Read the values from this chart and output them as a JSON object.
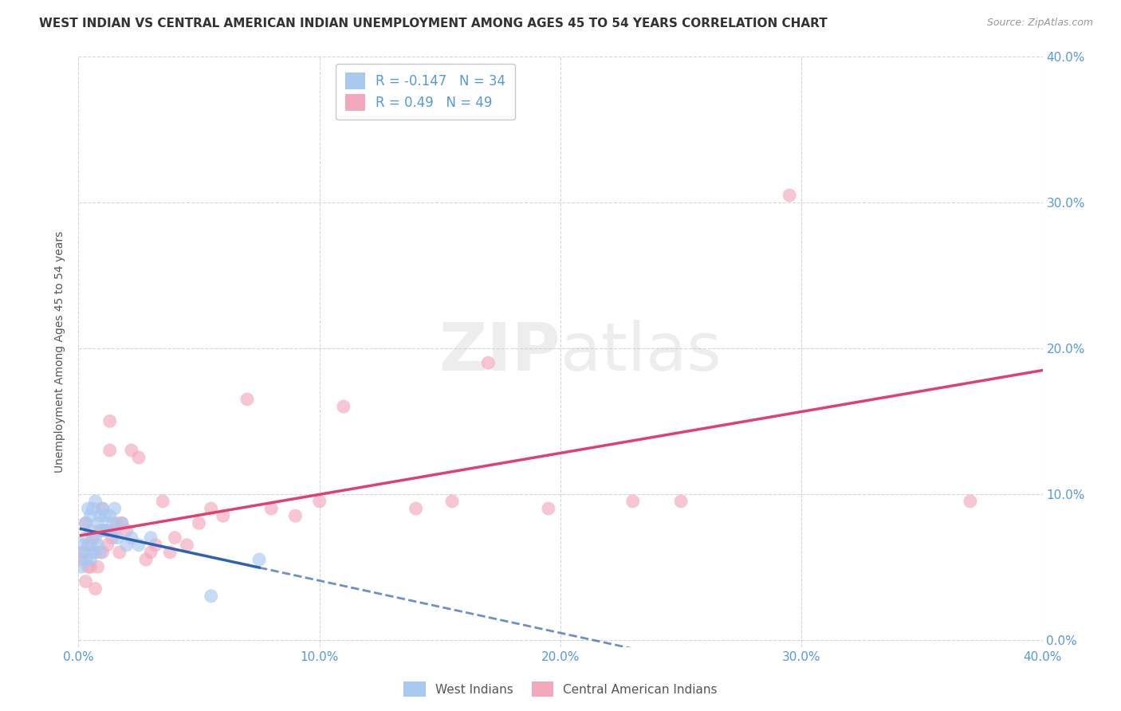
{
  "title": "WEST INDIAN VS CENTRAL AMERICAN INDIAN UNEMPLOYMENT AMONG AGES 45 TO 54 YEARS CORRELATION CHART",
  "source": "Source: ZipAtlas.com",
  "ylabel": "Unemployment Among Ages 45 to 54 years",
  "legend_label1": "West Indians",
  "legend_label2": "Central American Indians",
  "r1": -0.147,
  "n1": 34,
  "r2": 0.49,
  "n2": 49,
  "blue_color": "#A8C8F0",
  "pink_color": "#F4A8BC",
  "blue_line_color": "#3060B0",
  "pink_line_color": "#E04070",
  "axis_color": "#5599DD",
  "grid_color": "#CCCCCC",
  "background_color": "#FFFFFF",
  "title_color": "#333333",
  "west_indians_x": [
    0.001,
    0.002,
    0.002,
    0.003,
    0.003,
    0.003,
    0.004,
    0.004,
    0.005,
    0.005,
    0.005,
    0.006,
    0.006,
    0.007,
    0.007,
    0.008,
    0.008,
    0.009,
    0.009,
    0.01,
    0.01,
    0.011,
    0.012,
    0.013,
    0.014,
    0.015,
    0.016,
    0.018,
    0.02,
    0.022,
    0.025,
    0.03,
    0.055,
    0.075
  ],
  "west_indians_y": [
    0.05,
    0.06,
    0.065,
    0.055,
    0.07,
    0.08,
    0.065,
    0.09,
    0.055,
    0.075,
    0.085,
    0.06,
    0.09,
    0.07,
    0.095,
    0.08,
    0.065,
    0.085,
    0.06,
    0.075,
    0.09,
    0.085,
    0.075,
    0.085,
    0.08,
    0.09,
    0.07,
    0.08,
    0.065,
    0.07,
    0.065,
    0.07,
    0.03,
    0.055
  ],
  "central_american_x": [
    0.001,
    0.002,
    0.003,
    0.003,
    0.004,
    0.005,
    0.005,
    0.006,
    0.007,
    0.007,
    0.008,
    0.009,
    0.01,
    0.01,
    0.011,
    0.012,
    0.013,
    0.013,
    0.014,
    0.015,
    0.016,
    0.017,
    0.018,
    0.02,
    0.022,
    0.025,
    0.028,
    0.03,
    0.032,
    0.035,
    0.038,
    0.04,
    0.045,
    0.05,
    0.055,
    0.06,
    0.07,
    0.08,
    0.09,
    0.1,
    0.11,
    0.14,
    0.155,
    0.17,
    0.195,
    0.23,
    0.25,
    0.295,
    0.37
  ],
  "central_american_y": [
    0.055,
    0.06,
    0.04,
    0.08,
    0.05,
    0.065,
    0.05,
    0.07,
    0.035,
    0.06,
    0.05,
    0.075,
    0.06,
    0.09,
    0.075,
    0.065,
    0.13,
    0.15,
    0.07,
    0.075,
    0.08,
    0.06,
    0.08,
    0.075,
    0.13,
    0.125,
    0.055,
    0.06,
    0.065,
    0.095,
    0.06,
    0.07,
    0.065,
    0.08,
    0.09,
    0.085,
    0.165,
    0.09,
    0.085,
    0.095,
    0.16,
    0.09,
    0.095,
    0.19,
    0.09,
    0.095,
    0.095,
    0.305,
    0.095
  ],
  "xlim": [
    0.0,
    0.4
  ],
  "ylim": [
    -0.005,
    0.4
  ],
  "yticks": [
    0.0,
    0.1,
    0.2,
    0.3,
    0.4
  ],
  "yticklabels": [
    "0.0%",
    "10.0%",
    "20.0%",
    "30.0%",
    "40.0%"
  ],
  "xticks": [
    0.0,
    0.1,
    0.2,
    0.3,
    0.4
  ],
  "xticklabels": [
    "0.0%",
    "10.0%",
    "20.0%",
    "30.0%",
    "40.0%"
  ]
}
